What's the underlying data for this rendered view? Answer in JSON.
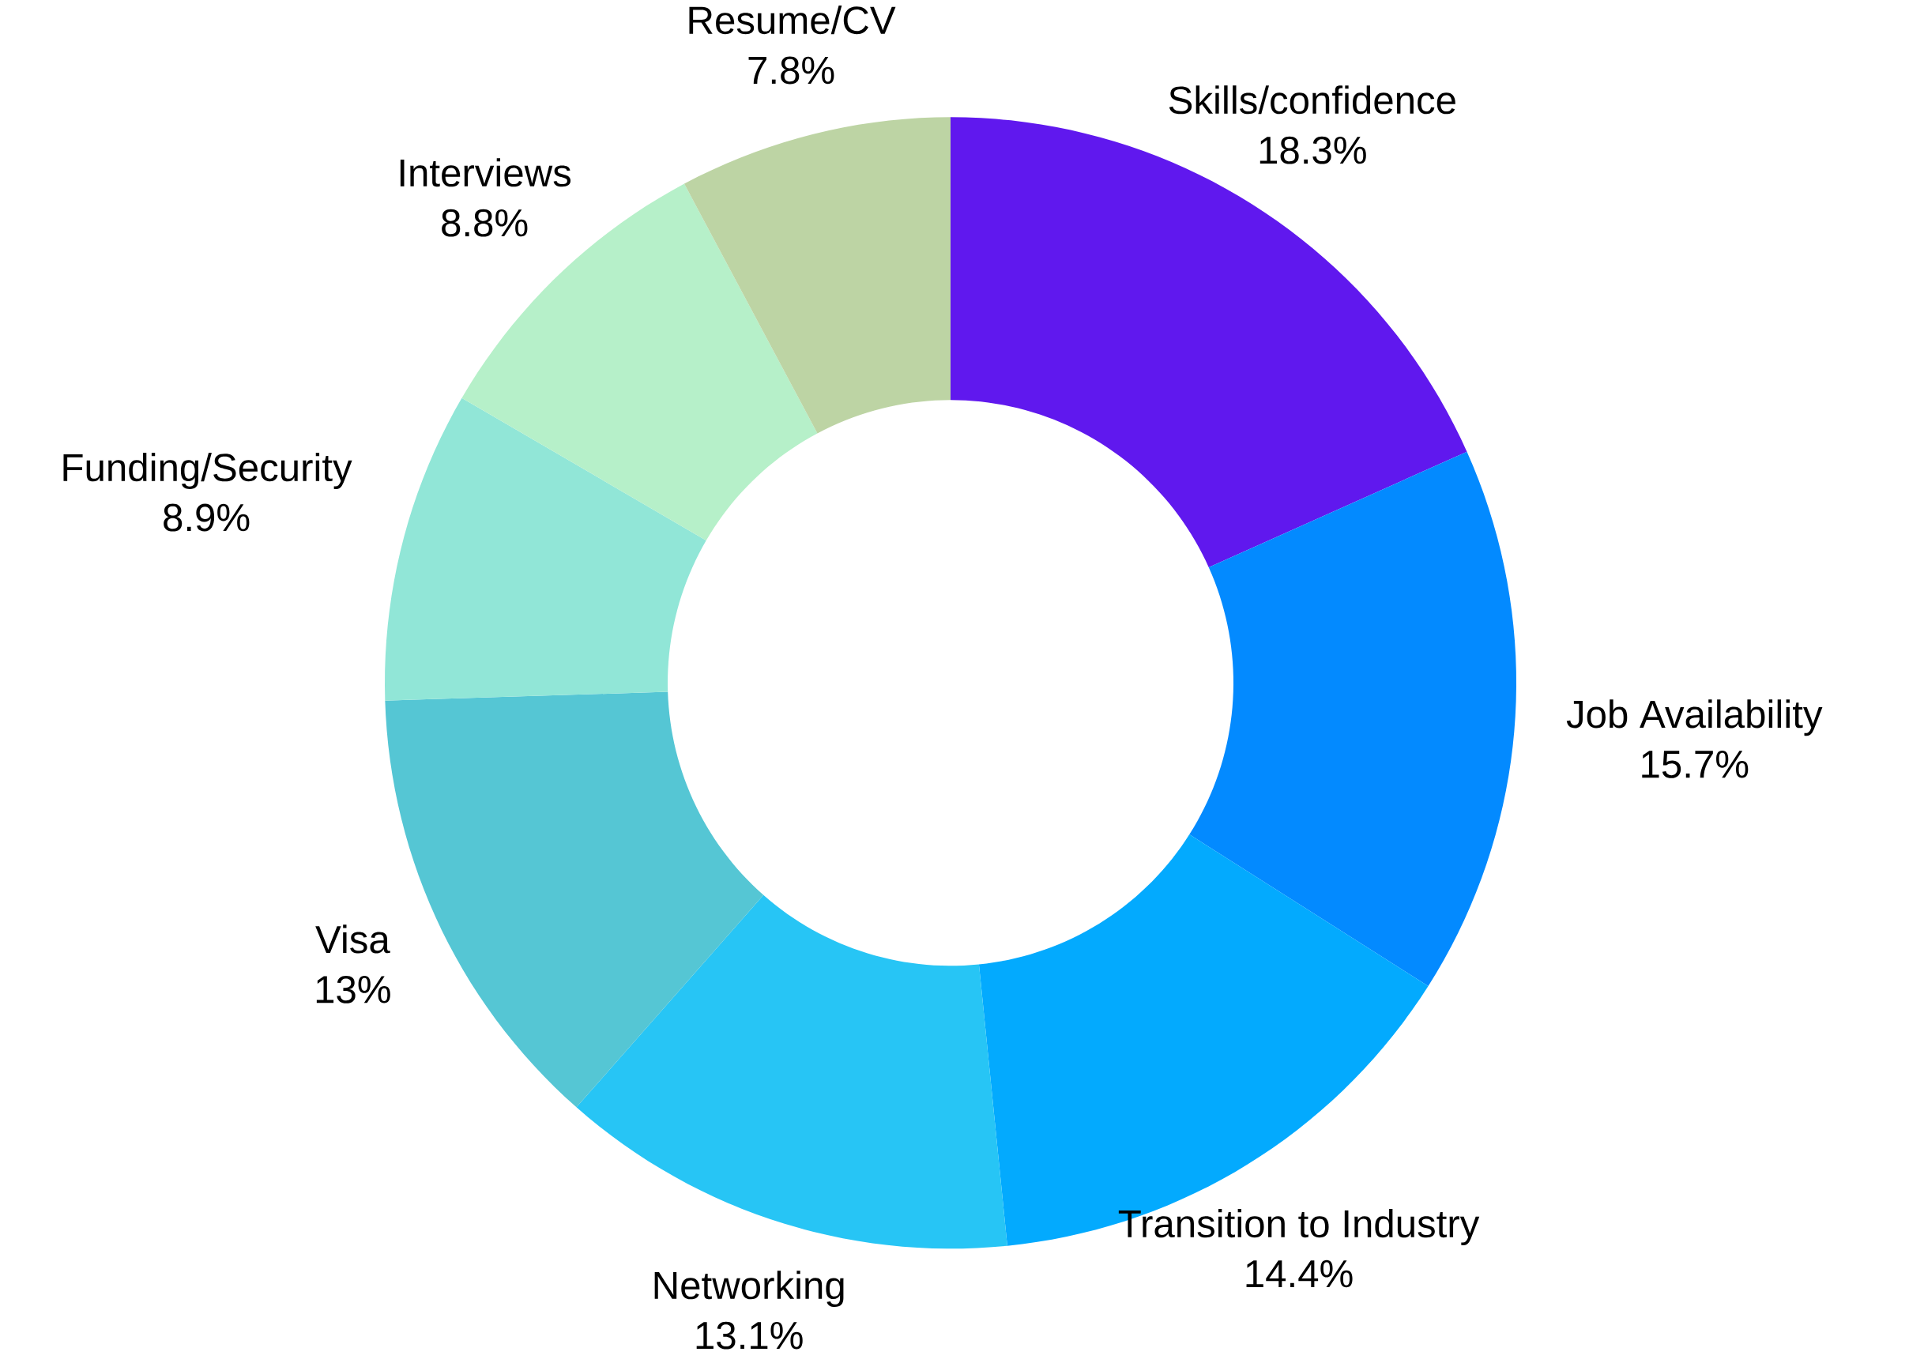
{
  "chart_data": {
    "type": "donut",
    "categories": [
      "Skills/confidence",
      "Job Availability",
      "Transition to Industry",
      "Networking",
      "Visa",
      "Funding/Security",
      "Interviews",
      "Resume/CV"
    ],
    "values": [
      18.3,
      15.7,
      14.4,
      13.1,
      13,
      8.9,
      8.8,
      7.8
    ],
    "value_labels": [
      "18.3%",
      "15.7%",
      "14.4%",
      "13.1%",
      "13%",
      "8.9%",
      "8.8%",
      "7.8%"
    ],
    "colors": [
      "#6018ee",
      "#038aff",
      "#03aafe",
      "#27c5f5",
      "#55c6d4",
      "#91e6d7",
      "#b6f0c9",
      "#bdd4a4"
    ]
  }
}
